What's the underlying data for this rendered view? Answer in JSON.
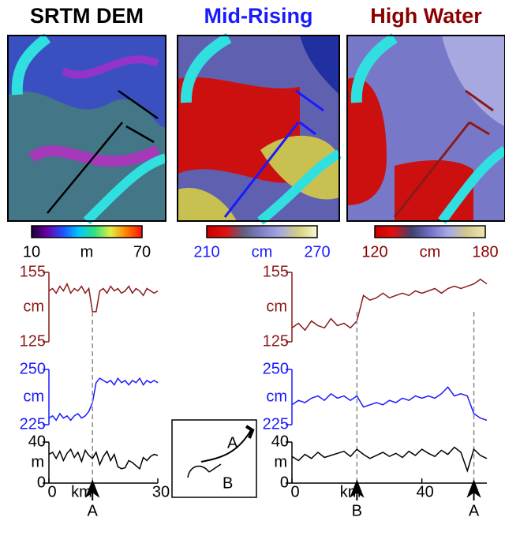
{
  "maps": [
    {
      "title": "SRTM DEM",
      "title_color": "#000000",
      "colorbar": {
        "ticks": [
          10,
          70
        ],
        "unit": "m",
        "label_color": "#000000",
        "colors": [
          "#1a0033",
          "#6a00a8",
          "#2050ff",
          "#00c8ff",
          "#30e080",
          "#e0f040",
          "#ff8000",
          "#ff1010"
        ]
      }
    },
    {
      "title": "Mid-Rising",
      "title_color": "#1a1aff",
      "colorbar": {
        "ticks": [
          210,
          270
        ],
        "unit": "cm",
        "label_color": "#1a1aff",
        "colors": [
          "#cc0000",
          "#e01010",
          "#606080",
          "#8080c8",
          "#a8a8e0",
          "#d8d080",
          "#f8f8d0"
        ]
      }
    },
    {
      "title": "High Water",
      "title_color": "#8b0000",
      "colorbar": {
        "ticks": [
          120,
          180
        ],
        "unit": "cm",
        "label_color": "#8b0000",
        "colors": [
          "#cc0000",
          "#e01010",
          "#404070",
          "#7070c8",
          "#a8a8e8",
          "#d0c890",
          "#f0e8b0"
        ]
      }
    }
  ],
  "chart_data": [
    {
      "type": "line",
      "color": "#8b1a1a",
      "ylabel": "cm",
      "ylim": [
        125,
        155
      ],
      "yticks": [
        125,
        155
      ],
      "xlim": [
        0,
        30
      ],
      "x": [
        0,
        1,
        2,
        3,
        4,
        5,
        6,
        7,
        8,
        9,
        10,
        11,
        12,
        13,
        14,
        15,
        16,
        17,
        18,
        19,
        20,
        21,
        22,
        23,
        24,
        25,
        26,
        27,
        28,
        29,
        30
      ],
      "values": [
        147,
        148,
        146,
        149,
        147,
        150,
        146,
        148,
        147,
        149,
        146,
        148,
        138,
        138,
        147,
        148,
        146,
        149,
        147,
        148,
        146,
        147,
        149,
        146,
        148,
        147,
        145,
        148,
        147,
        146,
        147
      ]
    },
    {
      "type": "line",
      "color": "#1a1aff",
      "ylabel": "cm",
      "ylim": [
        225,
        250
      ],
      "yticks": [
        225,
        250
      ],
      "xlim": [
        0,
        30
      ],
      "x": [
        0,
        1,
        2,
        3,
        4,
        5,
        6,
        7,
        8,
        9,
        10,
        11,
        12,
        13,
        14,
        15,
        16,
        17,
        18,
        19,
        20,
        21,
        22,
        23,
        24,
        25,
        26,
        27,
        28,
        29,
        30
      ],
      "values": [
        228,
        229,
        227,
        230,
        228,
        229,
        227,
        229,
        230,
        228,
        229,
        231,
        235,
        244,
        246,
        245,
        244,
        245,
        243,
        246,
        244,
        245,
        243,
        245,
        244,
        246,
        243,
        245,
        244,
        245,
        244
      ]
    },
    {
      "type": "line",
      "color": "#000000",
      "ylabel": "m",
      "ylim": [
        0,
        40
      ],
      "yticks": [
        0,
        40
      ],
      "xlim": [
        0,
        30
      ],
      "xticks": [
        0,
        30
      ],
      "xlabel": "km",
      "x": [
        0,
        1,
        2,
        3,
        4,
        5,
        6,
        7,
        8,
        9,
        10,
        11,
        12,
        13,
        14,
        15,
        16,
        17,
        18,
        19,
        20,
        21,
        22,
        23,
        24,
        25,
        26,
        27,
        28,
        29,
        30
      ],
      "values": [
        28,
        30,
        24,
        31,
        22,
        29,
        33,
        25,
        30,
        21,
        32,
        27,
        24,
        30,
        18,
        26,
        31,
        22,
        28,
        16,
        14,
        15,
        22,
        20,
        17,
        14,
        25,
        22,
        26,
        28,
        27
      ],
      "markers": [
        {
          "x": 12,
          "label": "A"
        }
      ]
    },
    {
      "type": "line",
      "color": "#8b1a1a",
      "ylabel": "cm",
      "ylim": [
        125,
        155
      ],
      "yticks": [
        125,
        155
      ],
      "xlim": [
        0,
        60
      ],
      "x": [
        0,
        2,
        4,
        6,
        8,
        10,
        12,
        14,
        16,
        18,
        20,
        22,
        24,
        26,
        28,
        30,
        32,
        34,
        36,
        38,
        40,
        42,
        44,
        46,
        48,
        50,
        52,
        54,
        56,
        58,
        60
      ],
      "values": [
        131,
        133,
        130,
        134,
        132,
        131,
        135,
        132,
        133,
        131,
        134,
        145,
        143,
        144,
        146,
        144,
        145,
        146,
        145,
        147,
        146,
        147,
        148,
        146,
        148,
        149,
        148,
        149,
        150,
        152,
        150
      ]
    },
    {
      "type": "line",
      "color": "#1a1aff",
      "ylabel": "cm",
      "ylim": [
        225,
        250
      ],
      "yticks": [
        225,
        250
      ],
      "xlim": [
        0,
        60
      ],
      "x": [
        0,
        2,
        4,
        6,
        8,
        10,
        12,
        14,
        16,
        18,
        20,
        22,
        24,
        26,
        28,
        30,
        32,
        34,
        36,
        38,
        40,
        42,
        44,
        46,
        48,
        50,
        52,
        54,
        56,
        58,
        60
      ],
      "values": [
        234,
        236,
        235,
        237,
        238,
        236,
        239,
        237,
        238,
        236,
        238,
        233,
        234,
        235,
        234,
        236,
        235,
        237,
        236,
        238,
        237,
        238,
        237,
        239,
        242,
        238,
        239,
        238,
        230,
        228,
        227
      ]
    },
    {
      "type": "line",
      "color": "#000000",
      "ylabel": "m",
      "ylim": [
        0,
        40
      ],
      "yticks": [
        0,
        40
      ],
      "xlim": [
        0,
        60
      ],
      "xticks": [
        0,
        40
      ],
      "xlabel": "km",
      "x": [
        0,
        2,
        4,
        6,
        8,
        10,
        12,
        14,
        16,
        18,
        20,
        22,
        24,
        26,
        28,
        30,
        32,
        34,
        36,
        38,
        40,
        42,
        44,
        46,
        48,
        50,
        52,
        54,
        56,
        58,
        60
      ],
      "values": [
        26,
        22,
        28,
        24,
        30,
        25,
        27,
        29,
        31,
        26,
        33,
        28,
        24,
        27,
        30,
        26,
        29,
        25,
        31,
        27,
        33,
        29,
        26,
        32,
        28,
        35,
        30,
        12,
        33,
        27,
        24
      ],
      "markers": [
        {
          "x": 20,
          "label": "B"
        },
        {
          "x": 56,
          "label": "A"
        }
      ]
    }
  ],
  "inset": {
    "labels": [
      "A",
      "B"
    ]
  }
}
